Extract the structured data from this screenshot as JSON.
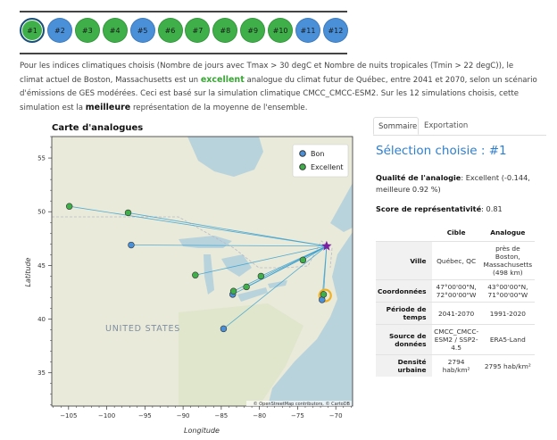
{
  "simulations": [
    {
      "label": "#1",
      "color": "#3fb049",
      "selected": true
    },
    {
      "label": "#2",
      "color": "#4a90d9"
    },
    {
      "label": "#3",
      "color": "#3fb049"
    },
    {
      "label": "#4",
      "color": "#3fb049"
    },
    {
      "label": "#5",
      "color": "#4a90d9"
    },
    {
      "label": "#6",
      "color": "#3fb049"
    },
    {
      "label": "#7",
      "color": "#3fb049"
    },
    {
      "label": "#8",
      "color": "#3fb049"
    },
    {
      "label": "#9",
      "color": "#3fb049"
    },
    {
      "label": "#10",
      "color": "#3fb049"
    },
    {
      "label": "#11",
      "color": "#4a90d9"
    },
    {
      "label": "#12",
      "color": "#4a90d9"
    }
  ],
  "description": {
    "part1": "Pour les indices climatiques choisis (Nombre de jours avec Tmax > 30 degC et Nombre de nuits tropicales (Tmin > 22 degC)), le climat actuel de Boston, Massachusetts est un ",
    "excellent": "excellent",
    "part2": " analogue du climat futur de Québec, entre 2041 et 2070, selon un scénario d'émissions de GES modérées. Ceci est basé sur la simulation climatique CMCC_CMCC-ESM2. Sur les 12 simulations choisis, cette simulation est la ",
    "best": "meilleure",
    "part3": " représentation de la moyenne de l'ensemble."
  },
  "map": {
    "title": "Carte d'analogues",
    "xlabel": "Longitude",
    "ylabel": "Latitude",
    "region_label": "UNITED STATES",
    "attribution": "© OpenStreetMap contributors, © CartoDB",
    "legend": [
      {
        "label": "Bon",
        "color": "#4a90d9"
      },
      {
        "label": "Excellent",
        "color": "#3fb049"
      }
    ],
    "xticks": [
      -105,
      -100,
      -95,
      -90,
      -85,
      -80,
      -75,
      -70
    ],
    "yticks": [
      35,
      40,
      45,
      50,
      55
    ],
    "target": {
      "lon": -71.2,
      "lat": 46.8,
      "color": "#7b1fa2"
    },
    "analogues": [
      {
        "lon": -104.9,
        "lat": 50.5,
        "quality": "Excellent"
      },
      {
        "lon": -97.2,
        "lat": 49.9,
        "quality": "Excellent"
      },
      {
        "lon": -96.8,
        "lat": 46.9,
        "quality": "Bon"
      },
      {
        "lon": -88.4,
        "lat": 44.1,
        "quality": "Excellent"
      },
      {
        "lon": -83.5,
        "lat": 42.3,
        "quality": "Bon"
      },
      {
        "lon": -83.4,
        "lat": 42.6,
        "quality": "Excellent"
      },
      {
        "lon": -81.7,
        "lat": 43.0,
        "quality": "Excellent"
      },
      {
        "lon": -79.8,
        "lat": 44.0,
        "quality": "Excellent"
      },
      {
        "lon": -74.3,
        "lat": 45.5,
        "quality": "Excellent"
      },
      {
        "lon": -71.8,
        "lat": 41.8,
        "quality": "Bon"
      },
      {
        "lon": -71.6,
        "lat": 42.3,
        "quality": "Excellent"
      },
      {
        "lon": -84.7,
        "lat": 39.1,
        "quality": "Bon"
      }
    ],
    "selected_analogue": {
      "lon": -71.4,
      "lat": 42.2
    }
  },
  "panel": {
    "tab_summary": "Sommaire",
    "tab_export": "Exportation",
    "selection_title": "Sélection choisie : #1",
    "quality_label": "Qualité de l'analogie",
    "quality_value": ": Excellent (-0.144, meilleure 0.92 %)",
    "score_label": "Score de représentativité",
    "score_value": ": 0.81",
    "col_target": "Cible",
    "col_analogue": "Analogue",
    "rows": [
      {
        "label": "Ville",
        "target": "Québec, QC",
        "analogue": "près de Boston, Massachusetts (498 km)"
      },
      {
        "label": "Coordonnées",
        "target": "47°00'00\"N, 72°00'00\"W",
        "analogue": "43°00'00\"N, 71°00'00\"W"
      },
      {
        "label": "Période de temps",
        "target": "2041-2070",
        "analogue": "1991-2020"
      },
      {
        "label": "Source de données",
        "target": "CMCC_CMCC-ESM2 / SSP2-4.5",
        "analogue": "ERA5-Land"
      },
      {
        "label": "Densité urbaine",
        "target": "2794 hab/km²",
        "analogue": "2795 hab/km²"
      }
    ]
  }
}
